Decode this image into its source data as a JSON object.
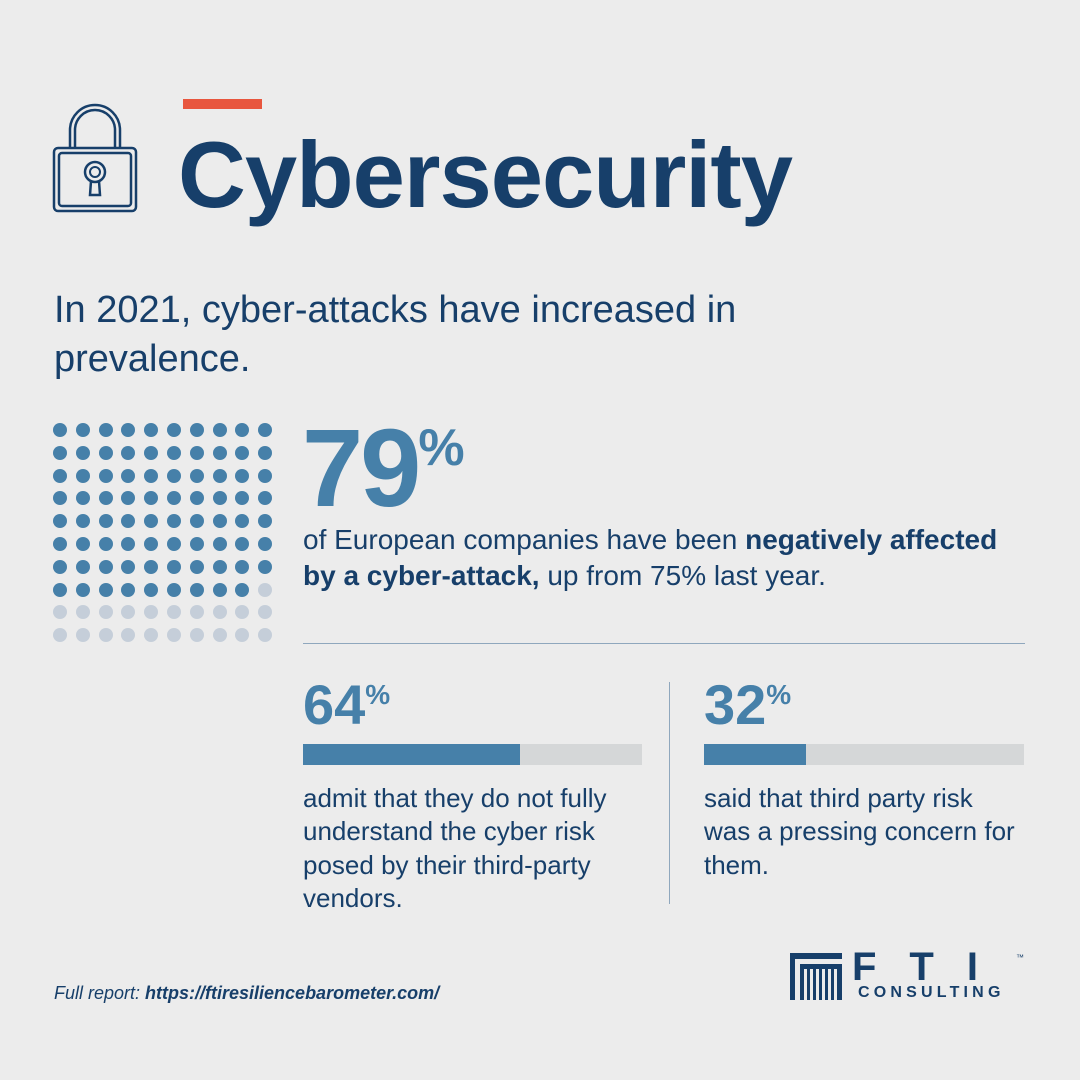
{
  "header": {
    "title": "Cybersecurity",
    "lock_icon": "lock-icon",
    "accent_color": "#e8563e"
  },
  "subtitle": "In 2021, cyber-attacks have increased in prevalence.",
  "main_stat": {
    "value": "79",
    "unit": "%",
    "dots_total": 100,
    "dots_filled": 79,
    "text_before": "of European companies have been ",
    "text_bold": "negatively affected by a cyber-attack,",
    "text_after": " up from 75% last year."
  },
  "stats": [
    {
      "value": "64",
      "unit": "%",
      "percent": 64,
      "description": "admit that they do not fully understand the cyber risk posed by their third-party vendors."
    },
    {
      "value": "32",
      "unit": "%",
      "percent": 32,
      "description": "said that third party risk was a pressing concern for them."
    }
  ],
  "footer": {
    "label": "Full report: ",
    "url": "https://ftiresiliencebarometer.com/"
  },
  "logo": {
    "letters": "FTI",
    "tm": "™",
    "sub": "CONSULTING"
  },
  "colors": {
    "primary": "#173f6a",
    "accent_blue": "#4680a9",
    "dot_off": "#c5ced9",
    "bar_track": "#d5d7d8",
    "background": "#ececec"
  }
}
